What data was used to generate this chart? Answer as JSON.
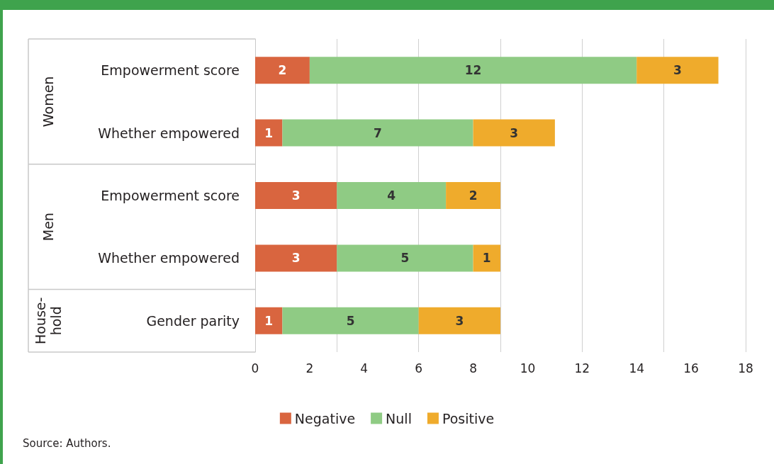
{
  "chart_data": {
    "type": "bar",
    "orientation": "horizontal",
    "stacked": true,
    "categories": [
      "Empowerment score",
      "Whether empowered",
      "Empowerment score",
      "Whether empowered",
      "Gender parity"
    ],
    "series": [
      {
        "name": "Negative",
        "color": "#d9653f",
        "values": [
          2,
          1,
          3,
          3,
          1
        ]
      },
      {
        "name": "Null",
        "color": "#8fcb84",
        "values": [
          12,
          7,
          4,
          5,
          5
        ]
      },
      {
        "name": "Positive",
        "color": "#efab2c",
        "values": [
          3,
          3,
          2,
          1,
          3
        ]
      }
    ],
    "xlim": [
      0,
      18
    ],
    "xticks": [
      0,
      2,
      4,
      6,
      8,
      10,
      12,
      14,
      16,
      18
    ],
    "grid": "x",
    "legend": "bottom",
    "data_labels": true,
    "annotations": [
      "Women",
      "Men",
      "House-hold",
      "Source: Authors."
    ]
  }
}
